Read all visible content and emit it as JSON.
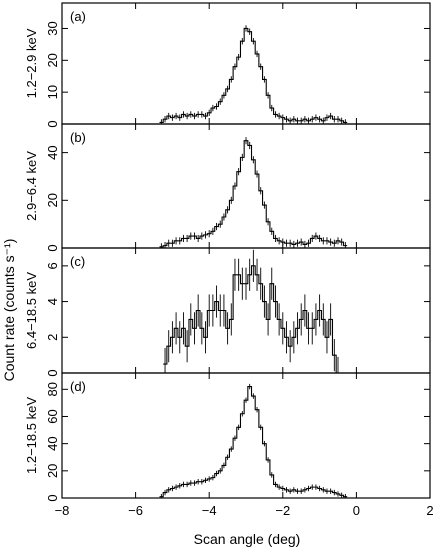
{
  "chart_data": {
    "type": "line",
    "xlabel": "Scan angle (deg)",
    "ylabel": "Count rate (counts s⁻¹)",
    "xlim": [
      -8,
      2
    ],
    "xticks": [
      -8,
      -6,
      -4,
      -2,
      0,
      2
    ],
    "panels": [
      {
        "letter": "(a)",
        "band": "1.2−2.9 keV",
        "ylim": [
          0,
          38
        ],
        "yticks": [
          0,
          10,
          20,
          30
        ],
        "step": "hist",
        "x": [
          -5.3,
          -5.2,
          -5.1,
          -5.0,
          -4.9,
          -4.8,
          -4.7,
          -4.6,
          -4.5,
          -4.4,
          -4.3,
          -4.2,
          -4.1,
          -4.0,
          -3.9,
          -3.8,
          -3.7,
          -3.6,
          -3.5,
          -3.4,
          -3.3,
          -3.2,
          -3.1,
          -3.0,
          -2.9,
          -2.8,
          -2.7,
          -2.6,
          -2.5,
          -2.4,
          -2.3,
          -2.2,
          -2.1,
          -2.0,
          -1.9,
          -1.8,
          -1.7,
          -1.6,
          -1.5,
          -1.4,
          -1.3,
          -1.2,
          -1.1,
          -1.0,
          -0.9,
          -0.8,
          -0.7,
          -0.6,
          -0.5,
          -0.4,
          -0.3
        ],
        "y": [
          0.5,
          1.5,
          2.5,
          2.0,
          2.5,
          2.0,
          3.0,
          2.5,
          3.0,
          2.5,
          3.0,
          3.0,
          2.5,
          3.5,
          5.0,
          5.5,
          7.0,
          9.0,
          11.0,
          14.0,
          18.0,
          21.0,
          26.0,
          30.0,
          29.0,
          26.0,
          22.0,
          18.0,
          14.0,
          9.0,
          5.0,
          3.0,
          2.5,
          2.0,
          1.5,
          1.0,
          1.5,
          1.0,
          1.0,
          1.5,
          1.0,
          1.5,
          2.0,
          1.5,
          1.0,
          2.0,
          2.5,
          1.5,
          1.5,
          1.0,
          0.5
        ],
        "err": 1.0
      },
      {
        "letter": "(b)",
        "band": "2.9−6.4 keV",
        "ylim": [
          0,
          52
        ],
        "yticks": [
          0,
          20,
          40
        ],
        "step": "hist",
        "x": [
          -5.3,
          -5.2,
          -5.1,
          -5.0,
          -4.9,
          -4.8,
          -4.7,
          -4.6,
          -4.5,
          -4.4,
          -4.3,
          -4.2,
          -4.1,
          -4.0,
          -3.9,
          -3.8,
          -3.7,
          -3.6,
          -3.5,
          -3.4,
          -3.3,
          -3.2,
          -3.1,
          -3.0,
          -2.9,
          -2.8,
          -2.7,
          -2.6,
          -2.5,
          -2.4,
          -2.3,
          -2.2,
          -2.1,
          -2.0,
          -1.9,
          -1.8,
          -1.7,
          -1.6,
          -1.5,
          -1.4,
          -1.3,
          -1.2,
          -1.1,
          -1.0,
          -0.9,
          -0.8,
          -0.7,
          -0.6,
          -0.5,
          -0.4,
          -0.3
        ],
        "y": [
          0.5,
          1.0,
          2.0,
          2.0,
          3.0,
          3.0,
          4.0,
          4.0,
          5.0,
          5.0,
          4.0,
          5.0,
          5.5,
          6.0,
          7.0,
          9.0,
          10.0,
          13.0,
          16.0,
          20.0,
          26.0,
          32.0,
          38.0,
          45.0,
          43.0,
          37.0,
          31.0,
          24.0,
          18.0,
          11.0,
          7.0,
          4.0,
          3.0,
          2.5,
          2.0,
          2.0,
          1.5,
          2.0,
          2.5,
          1.5,
          2.0,
          4.0,
          5.0,
          4.0,
          3.0,
          3.0,
          2.5,
          2.0,
          3.0,
          2.5,
          1.0
        ],
        "err": 1.5
      },
      {
        "letter": "(c)",
        "band": "6.4−18.5 keV",
        "ylim": [
          0,
          7
        ],
        "yticks": [
          0,
          2,
          4,
          6
        ],
        "step": "hist",
        "x": [
          -5.2,
          -5.1,
          -5.0,
          -4.9,
          -4.8,
          -4.7,
          -4.6,
          -4.5,
          -4.4,
          -4.3,
          -4.2,
          -4.1,
          -4.0,
          -3.9,
          -3.8,
          -3.7,
          -3.6,
          -3.5,
          -3.4,
          -3.3,
          -3.2,
          -3.1,
          -3.0,
          -2.9,
          -2.8,
          -2.7,
          -2.6,
          -2.5,
          -2.4,
          -2.3,
          -2.2,
          -2.1,
          -2.0,
          -1.9,
          -1.8,
          -1.7,
          -1.6,
          -1.5,
          -1.4,
          -1.3,
          -1.2,
          -1.1,
          -1.0,
          -0.9,
          -0.8,
          -0.7,
          -0.6,
          -0.5
        ],
        "y": [
          0.5,
          1.5,
          2.0,
          2.5,
          2.0,
          2.5,
          1.5,
          3.0,
          2.5,
          3.5,
          2.5,
          2.0,
          3.5,
          3.5,
          4.0,
          3.5,
          3.5,
          2.5,
          3.0,
          5.5,
          5.5,
          5.0,
          5.0,
          5.5,
          6.0,
          5.5,
          5.0,
          4.0,
          3.0,
          5.0,
          4.0,
          3.0,
          2.5,
          2.0,
          1.5,
          2.0,
          2.5,
          3.0,
          3.5,
          2.5,
          2.5,
          3.0,
          3.5,
          3.0,
          2.0,
          3.0,
          1.0,
          0.0
        ],
        "err": 0.9
      },
      {
        "letter": "(d)",
        "band": "1.2−18.5 keV",
        "ylim": [
          0,
          92
        ],
        "yticks": [
          0,
          20,
          40,
          60,
          80
        ],
        "step": "hist",
        "x": [
          -5.3,
          -5.2,
          -5.1,
          -5.0,
          -4.9,
          -4.8,
          -4.7,
          -4.6,
          -4.5,
          -4.4,
          -4.3,
          -4.2,
          -4.1,
          -4.0,
          -3.9,
          -3.8,
          -3.7,
          -3.6,
          -3.5,
          -3.4,
          -3.3,
          -3.2,
          -3.1,
          -3.0,
          -2.9,
          -2.8,
          -2.7,
          -2.6,
          -2.5,
          -2.4,
          -2.3,
          -2.2,
          -2.1,
          -2.0,
          -1.9,
          -1.8,
          -1.7,
          -1.6,
          -1.5,
          -1.4,
          -1.3,
          -1.2,
          -1.1,
          -1.0,
          -0.9,
          -0.8,
          -0.7,
          -0.6,
          -0.5,
          -0.4,
          -0.3
        ],
        "y": [
          1.0,
          4.0,
          6.0,
          7.0,
          8.0,
          9.0,
          10.0,
          10.0,
          11.0,
          11.0,
          12.0,
          12.0,
          13.0,
          14.0,
          15.0,
          18.0,
          20.0,
          24.0,
          30.0,
          36.0,
          44.0,
          52.0,
          62.0,
          72.0,
          82.0,
          75.0,
          65.0,
          52.0,
          40.0,
          28.0,
          17.0,
          10.0,
          8.0,
          7.0,
          6.0,
          5.0,
          6.0,
          5.0,
          5.0,
          6.0,
          7.0,
          8.0,
          8.0,
          7.0,
          6.0,
          5.0,
          5.0,
          4.0,
          3.0,
          2.0,
          1.0
        ],
        "err": 2.0
      }
    ]
  }
}
